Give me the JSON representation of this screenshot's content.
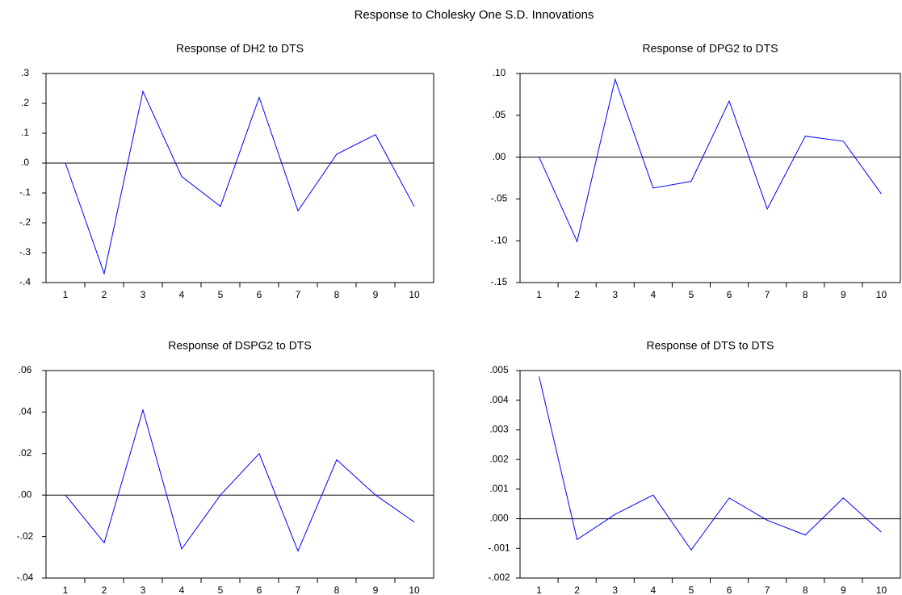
{
  "title": "Response to Cholesky One S.D. Innovations",
  "chart_data": [
    {
      "type": "line",
      "title": "Response of DH2 to DTS",
      "categories": [
        1,
        2,
        3,
        4,
        5,
        6,
        7,
        8,
        9,
        10
      ],
      "values": [
        0,
        -0.37,
        0.24,
        -0.045,
        -0.145,
        0.22,
        -0.16,
        0.03,
        0.095,
        -0.145
      ],
      "color": "#0000ff",
      "zero_line": true,
      "ylim": [
        -0.4,
        0.3
      ],
      "yticks": [
        {
          "value": -0.4,
          "label": "-.4"
        },
        {
          "value": -0.3,
          "label": "-.3"
        },
        {
          "value": -0.2,
          "label": "-.2"
        },
        {
          "value": -0.1,
          "label": "-.1"
        },
        {
          "value": 0,
          "label": ".0"
        },
        {
          "value": 0.1,
          "label": ".1"
        },
        {
          "value": 0.2,
          "label": ".2"
        },
        {
          "value": 0.3,
          "label": ".3"
        }
      ]
    },
    {
      "type": "line",
      "title": "Response of DPG2 to DTS",
      "categories": [
        1,
        2,
        3,
        4,
        5,
        6,
        7,
        8,
        9,
        10
      ],
      "values": [
        0,
        -0.101,
        0.093,
        -0.037,
        -0.029,
        0.067,
        -0.062,
        0.025,
        0.019,
        -0.044
      ],
      "color": "#0000ff",
      "zero_line": true,
      "ylim": [
        -0.15,
        0.1
      ],
      "yticks": [
        {
          "value": -0.15,
          "label": "-.15"
        },
        {
          "value": -0.1,
          "label": "-.10"
        },
        {
          "value": -0.05,
          "label": "-.05"
        },
        {
          "value": 0,
          "label": ".00"
        },
        {
          "value": 0.05,
          "label": ".05"
        },
        {
          "value": 0.1,
          "label": ".10"
        }
      ]
    },
    {
      "type": "line",
      "title": "Response of DSPG2 to DTS",
      "categories": [
        1,
        2,
        3,
        4,
        5,
        6,
        7,
        8,
        9,
        10
      ],
      "values": [
        0,
        -0.023,
        0.041,
        -0.026,
        0.0,
        0.02,
        -0.027,
        0.017,
        0,
        -0.013
      ],
      "color": "#0000ff",
      "zero_line": true,
      "ylim": [
        -0.04,
        0.06
      ],
      "yticks": [
        {
          "value": -0.04,
          "label": "-.04"
        },
        {
          "value": -0.02,
          "label": "-.02"
        },
        {
          "value": 0,
          "label": ".00"
        },
        {
          "value": 0.02,
          "label": ".02"
        },
        {
          "value": 0.04,
          "label": ".04"
        },
        {
          "value": 0.06,
          "label": ".06"
        }
      ]
    },
    {
      "type": "line",
      "title": "Response of DTS to DTS",
      "categories": [
        1,
        2,
        3,
        4,
        5,
        6,
        7,
        8,
        9,
        10
      ],
      "values": [
        0.0048,
        -0.0007,
        0.00015,
        0.0008,
        -0.00105,
        0.0007,
        -5e-05,
        -0.00055,
        0.0007,
        -0.00045
      ],
      "color": "#0000ff",
      "zero_line": true,
      "ylim": [
        -0.002,
        0.005
      ],
      "yticks": [
        {
          "value": -0.002,
          "label": "-.002"
        },
        {
          "value": -0.001,
          "label": "-.001"
        },
        {
          "value": 0,
          "label": ".000"
        },
        {
          "value": 0.001,
          "label": ".001"
        },
        {
          "value": 0.002,
          "label": ".002"
        },
        {
          "value": 0.003,
          "label": ".003"
        },
        {
          "value": 0.004,
          "label": ".004"
        },
        {
          "value": 0.005,
          "label": ".005"
        }
      ]
    }
  ]
}
